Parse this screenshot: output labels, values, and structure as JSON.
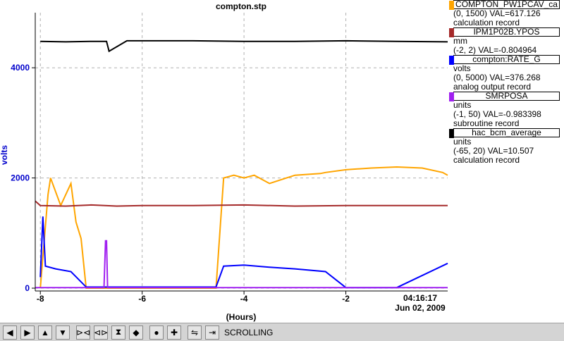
{
  "chart_data": {
    "type": "line",
    "title": "compton.stp",
    "xlabel": "(Hours)",
    "ylabel": "volts",
    "xlim": [
      -8.1,
      0
    ],
    "ylim": [
      0,
      5000
    ],
    "x_ticks": [
      -8,
      -6,
      -4,
      -2
    ],
    "x_tick_labels": [
      "-8",
      "-6",
      "-4",
      "-2"
    ],
    "y_ticks": [
      0,
      2000,
      4000
    ],
    "y_tick_labels": [
      "0",
      "2000",
      "4000"
    ],
    "end_time": "04:16:17",
    "end_date": "Jun 02, 2009",
    "grid": true,
    "series": [
      {
        "name": "COMPTON_PW1PCAV_ca",
        "color": "#ffa500",
        "range": "(0, 1500)",
        "val": "VAL=617.126",
        "record": "calculation record",
        "x": [
          -8.0,
          -7.85,
          -7.8,
          -7.6,
          -7.4,
          -7.3,
          -7.2,
          -7.1,
          -4.55,
          -4.4,
          -4.2,
          -4.0,
          -3.8,
          -3.5,
          -3.0,
          -2.5,
          -2.4,
          -2.0,
          -1.5,
          -1.0,
          -0.5,
          -0.1,
          0
        ],
        "y": [
          0,
          1700,
          2000,
          1500,
          1900,
          1200,
          900,
          0,
          0,
          2000,
          2050,
          2000,
          2050,
          1900,
          2050,
          2080,
          2100,
          2150,
          2180,
          2200,
          2180,
          2100,
          2050
        ]
      },
      {
        "name": "IPM1P02B.YPOS",
        "color": "#a52a2a",
        "units": "mm",
        "range": "(-2, 2)",
        "val": "VAL=-0.804964",
        "x": [
          -8.1,
          -8.0,
          -7.5,
          -7.0,
          -6.5,
          -6.0,
          -5.0,
          -4.0,
          -3.0,
          -2.0,
          -1.0,
          0
        ],
        "y": [
          1580,
          1500,
          1490,
          1510,
          1490,
          1500,
          1500,
          1510,
          1490,
          1500,
          1500,
          1500
        ]
      },
      {
        "name": "compton:RATE_G",
        "color": "#0000ff",
        "units": "volts",
        "range": "(0, 5000)",
        "val": "VAL=376.268",
        "record": "analog output record",
        "x": [
          -8.0,
          -7.95,
          -7.9,
          -7.7,
          -7.4,
          -7.1,
          -5.0,
          -4.55,
          -4.4,
          -4.0,
          -3.5,
          -3.0,
          -2.4,
          -2.0,
          -1.0,
          0
        ],
        "y": [
          200,
          1300,
          400,
          350,
          300,
          20,
          20,
          20,
          400,
          420,
          380,
          350,
          300,
          10,
          10,
          450
        ]
      },
      {
        "name": "SMRPOSA",
        "color": "#a020f0",
        "units": "units",
        "range": "(-1, 50)",
        "val": "VAL=-0.983398",
        "record": "subroutine record",
        "x": [
          -8.1,
          -6.75,
          -6.72,
          -6.7,
          -6.68,
          0
        ],
        "y": [
          10,
          10,
          860,
          860,
          10,
          10
        ]
      },
      {
        "name": "hac_bcm_average",
        "color": "#000000",
        "units": "units",
        "range": "(-65, 20)",
        "val": "VAL=10.507",
        "record": "calculation record",
        "x": [
          -8.0,
          -7.5,
          -7.0,
          -6.7,
          -6.65,
          -6.3,
          -5.0,
          -4.0,
          -3.0,
          -2.0,
          -1.0,
          0
        ],
        "y": [
          4480,
          4470,
          4480,
          4480,
          4300,
          4490,
          4490,
          4480,
          4480,
          4490,
          4480,
          4470
        ]
      }
    ]
  },
  "legend_lines": [
    {
      "label": "COMPTON_PW1PCAV_ca",
      "color": "#ffa500",
      "lines": [
        "(0, 1500) VAL=617.126",
        "calculation record"
      ]
    },
    {
      "label": "IPM1P02B.YPOS",
      "color": "#a52a2a",
      "lines": [
        "mm",
        "(-2, 2) VAL=-0.804964"
      ]
    },
    {
      "label": "compton:RATE_G",
      "color": "#0000ff",
      "lines": [
        "volts",
        "(0, 5000) VAL=376.268",
        "analog output record"
      ]
    },
    {
      "label": "SMRPOSA",
      "color": "#a020f0",
      "lines": [
        "units",
        "(-1, 50) VAL=-0.983398",
        "subroutine record"
      ]
    },
    {
      "label": "hac_bcm_average",
      "color": "#000000",
      "lines": [
        "units",
        "(-65, 20) VAL=10.507",
        "calculation record"
      ]
    }
  ],
  "toolbar": {
    "status": "SCROLLING",
    "buttons": [
      {
        "name": "scroll-left-icon",
        "glyph": "◀"
      },
      {
        "name": "scroll-right-icon",
        "glyph": "▶"
      },
      {
        "name": "scroll-up-icon",
        "glyph": "▲"
      },
      {
        "name": "scroll-down-icon",
        "glyph": "▼"
      },
      {
        "name": "zoom-in-x-icon",
        "glyph": "⊳⊲"
      },
      {
        "name": "zoom-out-x-icon",
        "glyph": "⊲⊳"
      },
      {
        "name": "zoom-in-y-icon",
        "glyph": "⧗"
      },
      {
        "name": "zoom-out-y-icon",
        "glyph": "◆"
      },
      {
        "name": "autoscale-icon",
        "glyph": "●"
      },
      {
        "name": "crosshair-icon",
        "glyph": "✚"
      },
      {
        "name": "reset-icon",
        "glyph": "⇋"
      },
      {
        "name": "scroll-mode-icon",
        "glyph": "⇥"
      }
    ]
  }
}
